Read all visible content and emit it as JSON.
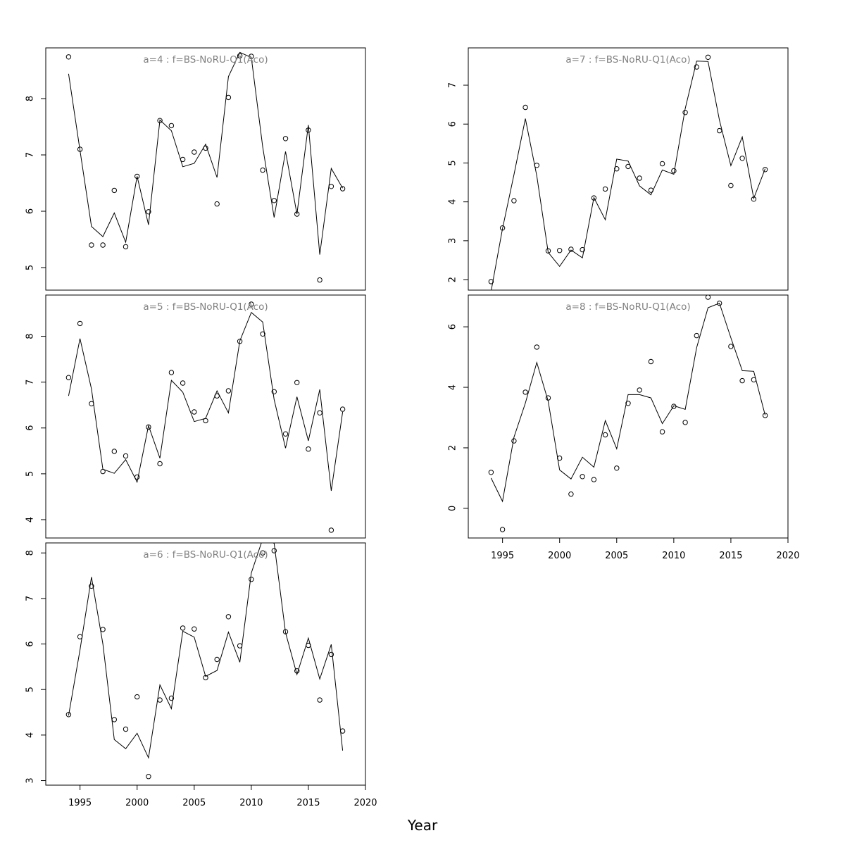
{
  "figure": {
    "xlabel": "Year",
    "x_ticks": [
      1995,
      2000,
      2005,
      2010,
      2015,
      2020
    ]
  },
  "chart_data": [
    {
      "type": "line",
      "title": "a=4 : f=BS-NoRU-Q1(Aco)",
      "xlim": [
        1992,
        2020
      ],
      "ylim": [
        4.6,
        8.9
      ],
      "y_ticks": [
        5,
        6,
        7,
        8
      ],
      "show_x_ticks": false,
      "series": [
        {
          "kind": "observed",
          "marker": "circle",
          "x": [
            1994,
            1995,
            1996,
            1997,
            1998,
            1999,
            2000,
            2001,
            2002,
            2003,
            2004,
            2005,
            2006,
            2007,
            2008,
            2009,
            2010,
            2011,
            2012,
            2013,
            2014,
            2015,
            2016,
            2017,
            2018
          ],
          "values": [
            8.74,
            7.1,
            5.4,
            5.4,
            6.37,
            5.37,
            6.62,
            5.99,
            7.61,
            7.52,
            6.92,
            7.05,
            7.12,
            6.13,
            8.02,
            8.76,
            8.75,
            6.73,
            6.19,
            7.29,
            5.95,
            7.44,
            4.78,
            6.44,
            6.4
          ]
        },
        {
          "kind": "fitted",
          "marker": "line",
          "x": [
            1994,
            1995,
            1996,
            1997,
            1998,
            1999,
            2000,
            2001,
            2002,
            2003,
            2004,
            2005,
            2006,
            2007,
            2008,
            2009,
            2010,
            2011,
            2012,
            2013,
            2014,
            2015,
            2016,
            2017,
            2018
          ],
          "values": [
            8.44,
            7.08,
            5.73,
            5.55,
            5.97,
            5.45,
            6.62,
            5.76,
            7.62,
            7.43,
            6.79,
            6.85,
            7.19,
            6.6,
            8.39,
            8.82,
            8.73,
            7.14,
            5.89,
            7.06,
            5.95,
            7.53,
            5.23,
            6.76,
            6.41
          ]
        }
      ]
    },
    {
      "type": "line",
      "title": "a=5 : f=BS-NoRU-Q1(Aco)",
      "xlim": [
        1992,
        2020
      ],
      "ylim": [
        3.6,
        8.9
      ],
      "y_ticks": [
        4,
        5,
        6,
        7,
        8
      ],
      "show_x_ticks": false,
      "series": [
        {
          "kind": "observed",
          "marker": "circle",
          "x": [
            1994,
            1995,
            1996,
            1997,
            1998,
            1999,
            2000,
            2001,
            2002,
            2003,
            2004,
            2005,
            2006,
            2007,
            2008,
            2009,
            2010,
            2011,
            2012,
            2013,
            2014,
            2015,
            2016,
            2017,
            2018
          ],
          "values": [
            7.1,
            8.28,
            6.53,
            5.05,
            5.49,
            5.39,
            4.93,
            6.02,
            5.22,
            7.21,
            6.98,
            6.35,
            6.16,
            6.7,
            6.81,
            7.89,
            8.7,
            8.05,
            6.79,
            5.87,
            6.99,
            5.54,
            6.33,
            3.77,
            6.41
          ]
        },
        {
          "kind": "fitted",
          "marker": "line",
          "x": [
            1994,
            1995,
            1996,
            1997,
            1998,
            1999,
            2000,
            2001,
            2002,
            2003,
            2004,
            2005,
            2006,
            2007,
            2008,
            2009,
            2010,
            2011,
            2012,
            2013,
            2014,
            2015,
            2016,
            2017,
            2018
          ],
          "values": [
            6.7,
            7.95,
            6.85,
            5.1,
            5.01,
            5.31,
            4.82,
            6.05,
            5.34,
            7.04,
            6.78,
            6.14,
            6.21,
            6.81,
            6.33,
            7.9,
            8.52,
            8.31,
            6.62,
            5.56,
            6.68,
            5.72,
            6.84,
            4.63,
            6.35
          ]
        }
      ]
    },
    {
      "type": "line",
      "title": "a=6 : f=BS-NoRU-Q1(Aco)",
      "xlim": [
        1992,
        2020
      ],
      "ylim": [
        2.9,
        8.22
      ],
      "y_ticks": [
        3,
        4,
        5,
        6,
        7,
        8
      ],
      "show_x_ticks": true,
      "series": [
        {
          "kind": "observed",
          "marker": "circle",
          "x": [
            1994,
            1995,
            1996,
            1997,
            1998,
            1999,
            2000,
            2001,
            2002,
            2003,
            2004,
            2005,
            2006,
            2007,
            2008,
            2009,
            2010,
            2011,
            2012,
            2013,
            2014,
            2015,
            2016,
            2017,
            2018
          ],
          "values": [
            4.45,
            6.16,
            7.27,
            6.32,
            4.34,
            4.13,
            4.84,
            3.09,
            4.77,
            4.81,
            6.35,
            6.33,
            5.26,
            5.66,
            6.6,
            5.96,
            7.42,
            8.0,
            8.05,
            6.27,
            5.41,
            5.97,
            4.77,
            5.77,
            4.09
          ]
        },
        {
          "kind": "fitted",
          "marker": "line",
          "x": [
            1994,
            1995,
            1996,
            1997,
            1998,
            1999,
            2000,
            2001,
            2002,
            2003,
            2004,
            2005,
            2006,
            2007,
            2008,
            2009,
            2010,
            2011,
            2012,
            2013,
            2014,
            2015,
            2016,
            2017,
            2018
          ],
          "values": [
            4.43,
            5.87,
            7.47,
            6.0,
            3.9,
            3.7,
            4.04,
            3.5,
            5.1,
            4.58,
            6.28,
            6.15,
            5.29,
            5.42,
            6.26,
            5.6,
            7.56,
            8.31,
            8.21,
            6.25,
            5.33,
            6.13,
            5.23,
            5.99,
            3.66
          ]
        }
      ]
    },
    {
      "type": "line",
      "title": "a=7 : f=BS-NoRU-Q1(Aco)",
      "xlim": [
        1992,
        2020
      ],
      "ylim": [
        1.73,
        7.96
      ],
      "y_ticks": [
        2,
        3,
        4,
        5,
        6,
        7
      ],
      "show_x_ticks": false,
      "series": [
        {
          "kind": "observed",
          "marker": "circle",
          "x": [
            1994,
            1995,
            1996,
            1997,
            1998,
            1999,
            2000,
            2001,
            2002,
            2003,
            2004,
            2005,
            2006,
            2007,
            2008,
            2009,
            2010,
            2011,
            2012,
            2013,
            2014,
            2015,
            2016,
            2017,
            2018
          ],
          "values": [
            1.95,
            3.33,
            4.03,
            6.43,
            4.94,
            2.74,
            2.75,
            2.78,
            2.77,
            4.1,
            4.33,
            4.85,
            4.91,
            4.61,
            4.3,
            4.98,
            4.8,
            6.3,
            7.47,
            7.72,
            5.83,
            4.42,
            5.12,
            4.07,
            4.83
          ]
        },
        {
          "kind": "fitted",
          "marker": "line",
          "x": [
            1994,
            1995,
            1996,
            1997,
            1998,
            1999,
            2000,
            2001,
            2002,
            2003,
            2004,
            2005,
            2006,
            2007,
            2008,
            2009,
            2010,
            2011,
            2012,
            2013,
            2014,
            2015,
            2016,
            2017,
            2018
          ],
          "values": [
            1.7,
            3.31,
            4.7,
            6.14,
            4.67,
            2.7,
            2.34,
            2.76,
            2.56,
            4.11,
            3.54,
            5.1,
            5.05,
            4.41,
            4.18,
            4.82,
            4.71,
            6.4,
            7.62,
            7.61,
            6.1,
            4.93,
            5.67,
            4.09,
            4.85
          ]
        }
      ]
    },
    {
      "type": "line",
      "title": "a=8 : f=BS-NoRU-Q1(Aco)",
      "xlim": [
        1992,
        2020
      ],
      "ylim": [
        -0.98,
        7.05
      ],
      "y_ticks": [
        0,
        2,
        4,
        6
      ],
      "show_x_ticks": true,
      "series": [
        {
          "kind": "observed",
          "marker": "circle",
          "x": [
            1994,
            1995,
            1996,
            1997,
            1998,
            1999,
            2000,
            2001,
            2002,
            2003,
            2004,
            2005,
            2006,
            2007,
            2008,
            2009,
            2010,
            2011,
            2012,
            2013,
            2014,
            2015,
            2016,
            2017,
            2018
          ],
          "values": [
            1.19,
            -0.7,
            2.23,
            3.84,
            5.33,
            3.65,
            1.66,
            0.47,
            1.05,
            0.95,
            2.43,
            1.33,
            3.47,
            3.91,
            4.85,
            2.53,
            3.37,
            2.84,
            5.71,
            6.98,
            6.78,
            5.35,
            4.22,
            4.25,
            3.07
          ]
        },
        {
          "kind": "fitted",
          "marker": "line",
          "x": [
            1994,
            1995,
            1996,
            1997,
            1998,
            1999,
            2000,
            2001,
            2002,
            2003,
            2004,
            2005,
            2006,
            2007,
            2008,
            2009,
            2010,
            2011,
            2012,
            2013,
            2014,
            2015,
            2016,
            2017,
            2018
          ],
          "values": [
            1.0,
            0.23,
            2.35,
            3.48,
            4.82,
            3.54,
            1.27,
            0.97,
            1.69,
            1.36,
            2.9,
            1.97,
            3.76,
            3.76,
            3.65,
            2.8,
            3.39,
            3.27,
            5.31,
            6.63,
            6.78,
            5.64,
            4.55,
            4.53,
            3.08
          ]
        }
      ]
    }
  ]
}
